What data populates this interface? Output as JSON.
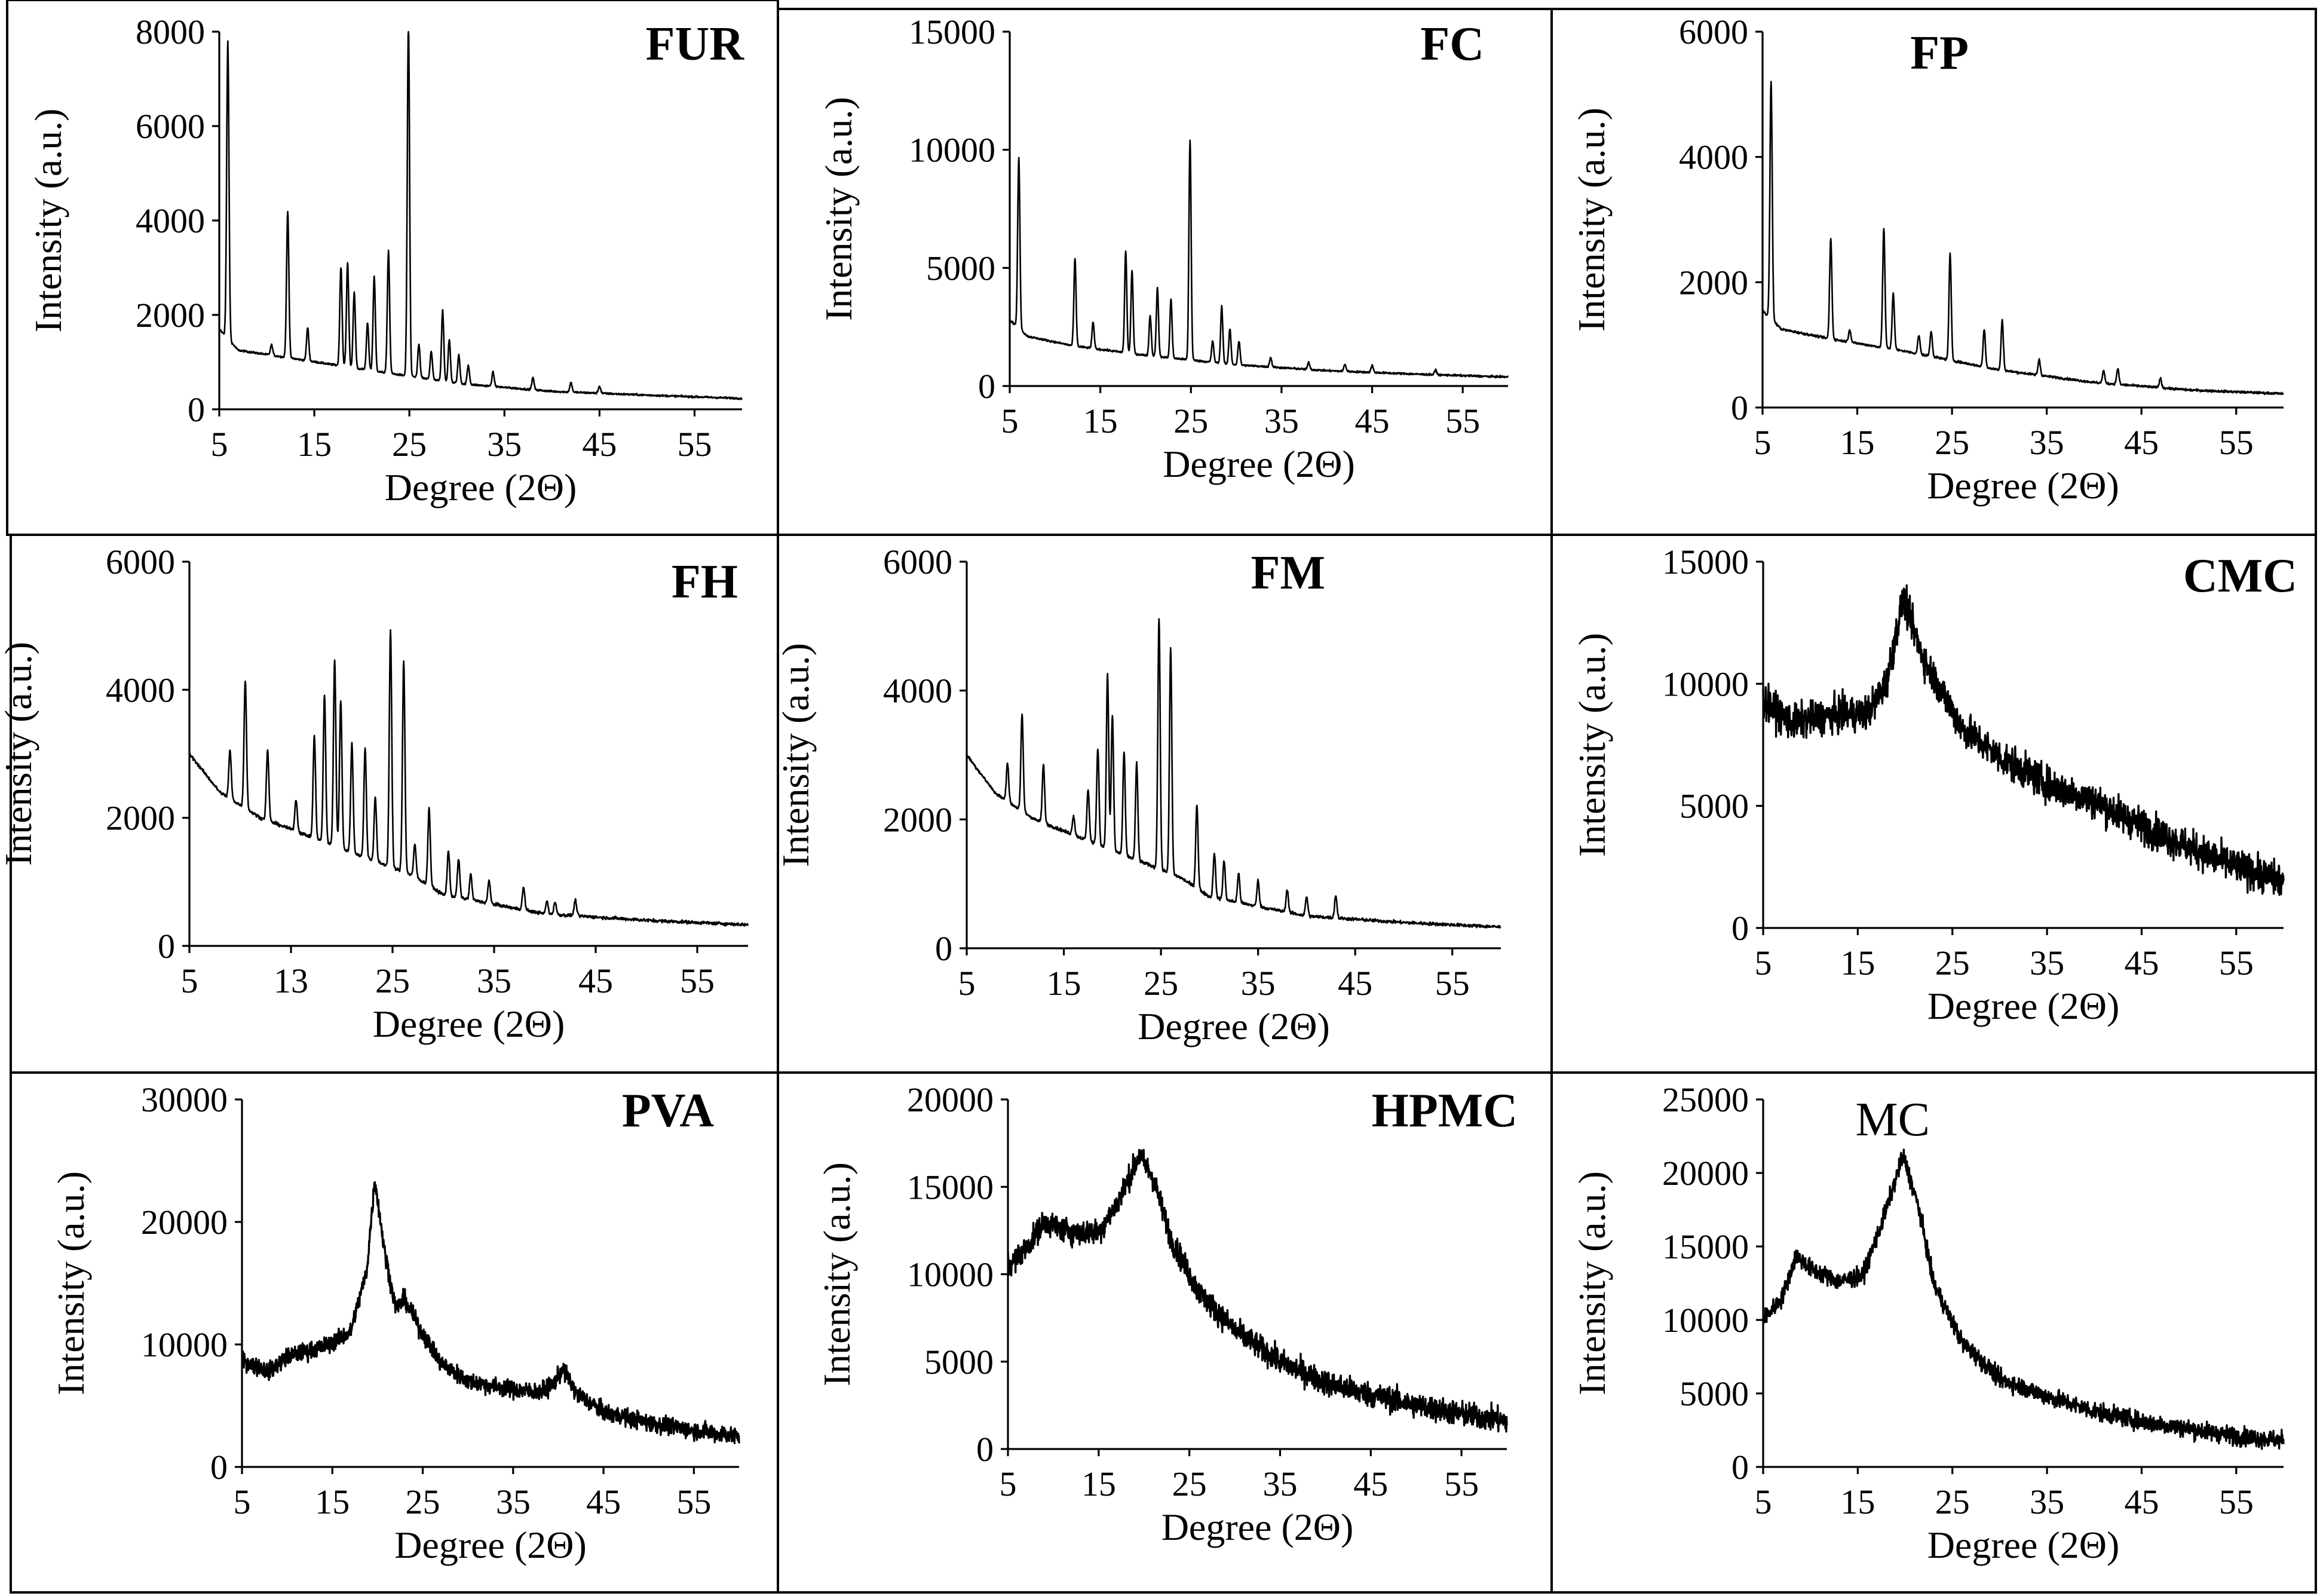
{
  "chart_data": [
    {
      "type": "line",
      "title": "FUR",
      "xlabel": "Degree (2Θ)",
      "ylabel": "Intensity (a.u.)",
      "xlim": [
        5,
        60
      ],
      "ylim": [
        0,
        8000
      ],
      "xticks": [
        "5",
        "15",
        "25",
        "35",
        "45",
        "55"
      ],
      "yticks": [
        "0",
        "2000",
        "4000",
        "6000",
        "8000"
      ],
      "noise": 20,
      "baseline": [
        [
          5,
          1700
        ],
        [
          7,
          1250
        ],
        [
          12,
          1100
        ],
        [
          20,
          850
        ],
        [
          30,
          550
        ],
        [
          40,
          380
        ],
        [
          50,
          300
        ],
        [
          60,
          230
        ]
      ],
      "peaks": [
        [
          5.9,
          6300
        ],
        [
          10.5,
          220
        ],
        [
          12.2,
          3100
        ],
        [
          14.3,
          700
        ],
        [
          17.8,
          2100
        ],
        [
          18.5,
          2200
        ],
        [
          19.2,
          1600
        ],
        [
          20.6,
          1000
        ],
        [
          21.3,
          2000
        ],
        [
          22.8,
          2600
        ],
        [
          24.9,
          7500
        ],
        [
          26.0,
          700
        ],
        [
          27.3,
          600
        ],
        [
          28.5,
          1500
        ],
        [
          29.2,
          900
        ],
        [
          30.2,
          600
        ],
        [
          31.2,
          400
        ],
        [
          33.8,
          300
        ],
        [
          38.0,
          250
        ],
        [
          42.0,
          200
        ],
        [
          45.0,
          150
        ]
      ]
    },
    {
      "type": "line",
      "title": "FC",
      "xlabel": "Degree (2Θ)",
      "ylabel": "Intensity (a.u.)",
      "xlim": [
        5,
        60
      ],
      "ylim": [
        0,
        15000
      ],
      "xticks": [
        "5",
        "15",
        "25",
        "35",
        "45",
        "55"
      ],
      "yticks": [
        "0",
        "5000",
        "10000",
        "15000"
      ],
      "noise": 40,
      "baseline": [
        [
          5,
          2800
        ],
        [
          7,
          2100
        ],
        [
          12,
          1700
        ],
        [
          20,
          1300
        ],
        [
          30,
          900
        ],
        [
          40,
          650
        ],
        [
          50,
          500
        ],
        [
          60,
          380
        ]
      ],
      "peaks": [
        [
          6.0,
          7200
        ],
        [
          12.2,
          3700
        ],
        [
          14.2,
          1100
        ],
        [
          17.8,
          4300
        ],
        [
          18.5,
          3500
        ],
        [
          20.5,
          1700
        ],
        [
          21.3,
          2900
        ],
        [
          22.8,
          2500
        ],
        [
          24.9,
          9300
        ],
        [
          27.4,
          900
        ],
        [
          28.4,
          2400
        ],
        [
          29.3,
          1500
        ],
        [
          30.3,
          1000
        ],
        [
          33.8,
          400
        ],
        [
          38.0,
          300
        ],
        [
          42.0,
          300
        ],
        [
          45.0,
          300
        ],
        [
          52.0,
          200
        ]
      ]
    },
    {
      "type": "line",
      "title": "FP",
      "xlabel": "Degree (2Θ)",
      "ylabel": "Intensity (a.u.)",
      "xlim": [
        5,
        60
      ],
      "ylim": [
        0,
        6000
      ],
      "xticks": [
        "5",
        "15",
        "25",
        "35",
        "45",
        "55"
      ],
      "yticks": [
        "0",
        "2000",
        "4000",
        "6000"
      ],
      "noise": 18,
      "baseline": [
        [
          5,
          1550
        ],
        [
          7,
          1250
        ],
        [
          12,
          1100
        ],
        [
          20,
          900
        ],
        [
          30,
          600
        ],
        [
          40,
          400
        ],
        [
          50,
          280
        ],
        [
          60,
          220
        ]
      ],
      "peaks": [
        [
          5.9,
          3800
        ],
        [
          12.2,
          1600
        ],
        [
          14.2,
          200
        ],
        [
          17.8,
          1900
        ],
        [
          18.8,
          900
        ],
        [
          21.5,
          300
        ],
        [
          22.8,
          400
        ],
        [
          24.8,
          1700
        ],
        [
          28.4,
          600
        ],
        [
          30.3,
          800
        ],
        [
          34.2,
          250
        ],
        [
          41.0,
          200
        ],
        [
          42.5,
          250
        ],
        [
          47.0,
          150
        ]
      ]
    },
    {
      "type": "line",
      "title": "FH",
      "xlabel": "Degree (2Θ)",
      "ylabel": "Intensity (a.u.)",
      "xlim": [
        5,
        60
      ],
      "ylim": [
        0,
        6000
      ],
      "xticks": [
        "5",
        "13",
        "25",
        "35",
        "45",
        "55"
      ],
      "yticks": [
        "0",
        "2000",
        "4000",
        "6000"
      ],
      "noise": 25,
      "baseline": [
        [
          5,
          3000
        ],
        [
          8,
          2400
        ],
        [
          12,
          2000
        ],
        [
          17,
          1700
        ],
        [
          22,
          1400
        ],
        [
          27,
          1100
        ],
        [
          30,
          800
        ],
        [
          35,
          650
        ],
        [
          40,
          500
        ],
        [
          50,
          400
        ],
        [
          60,
          330
        ]
      ],
      "peaks": [
        [
          9.0,
          750
        ],
        [
          10.5,
          2000
        ],
        [
          12.7,
          1100
        ],
        [
          15.5,
          500
        ],
        [
          17.3,
          1600
        ],
        [
          18.3,
          2300
        ],
        [
          19.3,
          2900
        ],
        [
          19.9,
          2300
        ],
        [
          21.0,
          1700
        ],
        [
          22.3,
          1700
        ],
        [
          23.3,
          1000
        ],
        [
          24.8,
          3700
        ],
        [
          26.1,
          3300
        ],
        [
          27.2,
          500
        ],
        [
          28.6,
          1200
        ],
        [
          30.5,
          700
        ],
        [
          31.5,
          600
        ],
        [
          32.7,
          400
        ],
        [
          34.5,
          350
        ],
        [
          37.9,
          350
        ],
        [
          40.2,
          200
        ],
        [
          41.0,
          200
        ],
        [
          43.0,
          250
        ]
      ]
    },
    {
      "type": "line",
      "title": "FM",
      "xlabel": "Degree (2Θ)",
      "ylabel": "Intensity (a.u.)",
      "xlim": [
        5,
        60
      ],
      "ylim": [
        0,
        6000
      ],
      "xticks": [
        "5",
        "15",
        "25",
        "35",
        "45",
        "55"
      ],
      "yticks": [
        "0",
        "2000",
        "4000",
        "6000"
      ],
      "noise": 25,
      "baseline": [
        [
          5,
          3000
        ],
        [
          8,
          2400
        ],
        [
          12,
          2000
        ],
        [
          17,
          1700
        ],
        [
          22,
          1400
        ],
        [
          27,
          1100
        ],
        [
          30,
          800
        ],
        [
          35,
          650
        ],
        [
          40,
          500
        ],
        [
          50,
          400
        ],
        [
          60,
          330
        ]
      ],
      "peaks": [
        [
          9.2,
          600
        ],
        [
          10.7,
          1500
        ],
        [
          12.9,
          900
        ],
        [
          16.0,
          300
        ],
        [
          17.5,
          800
        ],
        [
          18.5,
          1500
        ],
        [
          19.5,
          2700
        ],
        [
          20.0,
          2100
        ],
        [
          21.2,
          1600
        ],
        [
          22.5,
          1500
        ],
        [
          24.8,
          3900
        ],
        [
          26.0,
          3500
        ],
        [
          28.7,
          1300
        ],
        [
          30.5,
          700
        ],
        [
          31.5,
          600
        ],
        [
          33.0,
          450
        ],
        [
          35.0,
          400
        ],
        [
          38.0,
          350
        ],
        [
          40.0,
          300
        ],
        [
          43.0,
          350
        ]
      ]
    },
    {
      "type": "line",
      "title": "CMC",
      "xlabel": "Degree (2Θ)",
      "ylabel": "Intensity (a.u.)",
      "xlim": [
        5,
        60
      ],
      "ylim": [
        0,
        15000
      ],
      "xticks": [
        "5",
        "15",
        "25",
        "35",
        "45",
        "55"
      ],
      "yticks": [
        "0",
        "5000",
        "10000",
        "15000"
      ],
      "noise": 700,
      "baseline": [
        [
          5,
          9300
        ],
        [
          8,
          8400
        ],
        [
          12,
          8700
        ],
        [
          16,
          8800
        ],
        [
          18,
          10000
        ],
        [
          19.8,
          13500
        ],
        [
          22,
          11000
        ],
        [
          26,
          8200
        ],
        [
          30,
          7000
        ],
        [
          35,
          5900
        ],
        [
          40,
          5200
        ],
        [
          45,
          4200
        ],
        [
          50,
          3300
        ],
        [
          55,
          2500
        ],
        [
          60,
          1900
        ]
      ],
      "peaks": []
    },
    {
      "type": "line",
      "title": "PVA",
      "xlabel": "Degree (2Θ)",
      "ylabel": "Intensity (a.u.)",
      "xlim": [
        5,
        60
      ],
      "ylim": [
        0,
        30000
      ],
      "xticks": [
        "5",
        "15",
        "25",
        "35",
        "45",
        "55"
      ],
      "yticks": [
        "0",
        "10000",
        "20000",
        "30000"
      ],
      "noise": 700,
      "baseline": [
        [
          5,
          8700
        ],
        [
          8,
          7800
        ],
        [
          10,
          9000
        ],
        [
          14,
          9800
        ],
        [
          17,
          11000
        ],
        [
          18.8,
          16000
        ],
        [
          19.7,
          23500
        ],
        [
          20.8,
          17500
        ],
        [
          22.0,
          13000
        ],
        [
          23.0,
          13700
        ],
        [
          24.5,
          11500
        ],
        [
          27,
          8500
        ],
        [
          30,
          7000
        ],
        [
          35,
          6300
        ],
        [
          38,
          6100
        ],
        [
          39.5,
          6800
        ],
        [
          40.5,
          8000
        ],
        [
          42,
          6000
        ],
        [
          45,
          4500
        ],
        [
          50,
          3600
        ],
        [
          55,
          3000
        ],
        [
          60,
          2500
        ]
      ],
      "peaks": []
    },
    {
      "type": "line",
      "title": "HPMC",
      "xlabel": "Degree (2Θ)",
      "ylabel": "Intensity (a.u.)",
      "xlim": [
        5,
        60
      ],
      "ylim": [
        0,
        20000
      ],
      "xticks": [
        "5",
        "15",
        "25",
        "35",
        "45",
        "55"
      ],
      "yticks": [
        "0",
        "5000",
        "10000",
        "15000",
        "20000"
      ],
      "noise": 700,
      "baseline": [
        [
          5,
          10500
        ],
        [
          7,
          11500
        ],
        [
          9,
          13000
        ],
        [
          12,
          12400
        ],
        [
          15,
          12400
        ],
        [
          17,
          14000
        ],
        [
          19.5,
          16800
        ],
        [
          21,
          15500
        ],
        [
          23,
          12000
        ],
        [
          26,
          9000
        ],
        [
          30,
          6800
        ],
        [
          35,
          5000
        ],
        [
          40,
          3800
        ],
        [
          45,
          3100
        ],
        [
          50,
          2500
        ],
        [
          55,
          2000
        ],
        [
          60,
          1600
        ]
      ],
      "peaks": []
    },
    {
      "type": "line",
      "title": "MC",
      "xlabel": "Degree (2Θ)",
      "ylabel": "Intensity (a.u.)",
      "xlim": [
        5,
        60
      ],
      "ylim": [
        0,
        25000
      ],
      "xticks": [
        "5",
        "15",
        "25",
        "35",
        "45",
        "55"
      ],
      "yticks": [
        "0",
        "5000",
        "10000",
        "15000",
        "20000",
        "25000"
      ],
      "noise": 600,
      "baseline": [
        [
          5,
          10000
        ],
        [
          7,
          11500
        ],
        [
          8.5,
          14400
        ],
        [
          10,
          13500
        ],
        [
          13,
          12600
        ],
        [
          15.5,
          13000
        ],
        [
          17.5,
          16500
        ],
        [
          19.8,
          21200
        ],
        [
          21.5,
          17500
        ],
        [
          23,
          12500
        ],
        [
          26,
          8500
        ],
        [
          30,
          6000
        ],
        [
          35,
          4800
        ],
        [
          40,
          3800
        ],
        [
          45,
          3100
        ],
        [
          50,
          2600
        ],
        [
          55,
          2100
        ],
        [
          60,
          1800
        ]
      ],
      "peaks": []
    }
  ]
}
